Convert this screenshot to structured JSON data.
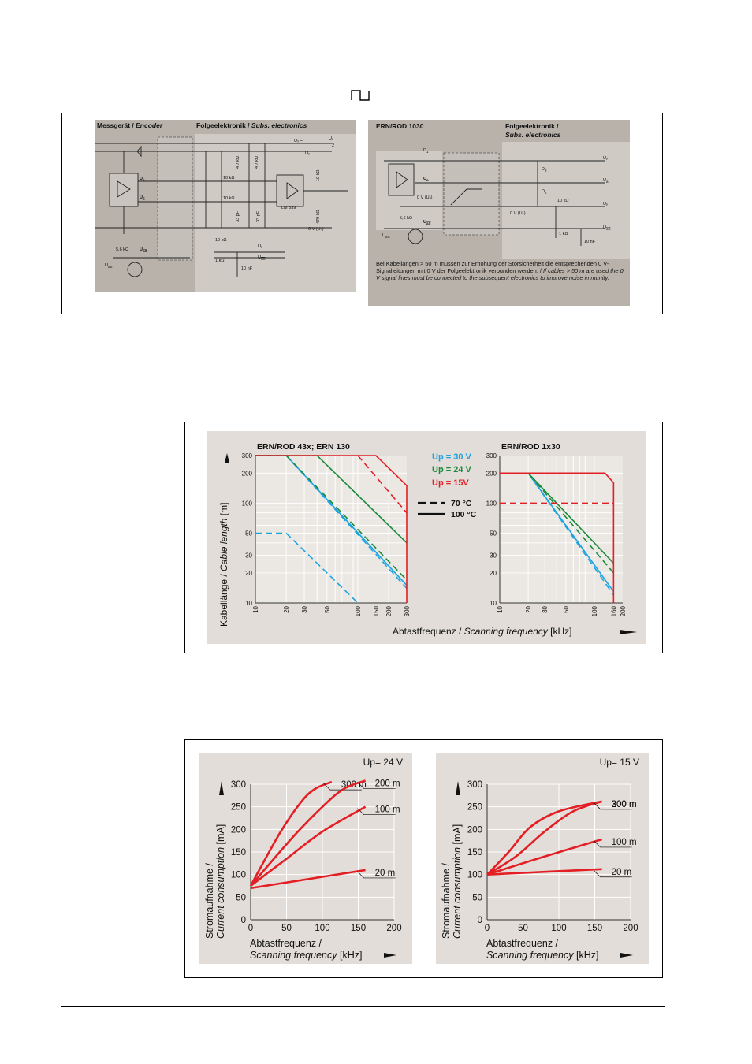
{
  "header": {
    "signal_symbol": "square-wave-icon"
  },
  "circuits": {
    "left": {
      "encoder_title_de": "Messgerät / ",
      "encoder_title_en": "Encoder",
      "subs_title_de": "Folgeelektronik / ",
      "subs_title_en": "Subs. electronics",
      "u0": "U₀ = ",
      "u0_frac_num": "Uₚ",
      "u0_frac_den": "2",
      "up": "Uₚ",
      "zero_v": "0 V (Uₙ)",
      "r_4k7_a": "4,7 kΩ",
      "r_4k7_b": "4,7 kΩ",
      "r_10k_a": "10 kΩ",
      "r_10k_b": "10 kΩ",
      "r_10k_c": "10 kΩ",
      "r_470k": "470 kΩ",
      "c_33pf_a": "33 pF",
      "c_33pf_b": "33 pF",
      "lm": "LM 339",
      "ua": "U",
      "ua_sub": "a",
      "ua_bar": "U",
      "ua_bar_sub": "a",
      "r_5k6": "5,6 kΩ",
      "uas_bar": "U",
      "uas_bar_sub": "aS",
      "uas": "U",
      "uas_sub": "aS",
      "r_10k_d": "10 kΩ",
      "r_1k": "1 kΩ",
      "c_10nf": "10 nF",
      "up2": "Uₚ",
      "uas_out": "U",
      "uas_out_sub": "aS"
    },
    "right": {
      "title": "ERN/ROD 1030",
      "subs_title_de": "Folgeelektronik /",
      "subs_title_en": "Subs. electronics",
      "d1": "D",
      "d1_sub": "1",
      "d2a": "D",
      "d2a_sub": "2",
      "d2b": "D",
      "d2b_sub": "2",
      "ua": "U",
      "ua_sub": "a",
      "up": "Uₚ",
      "ua_out": "U",
      "ua_out_sub": "a",
      "up2": "Uₚ",
      "zero_v_a": "0 V (Uₐ)",
      "zero_v_n": "0 V (Uₙ)",
      "r_10k": "10 kΩ",
      "r_1k": "1 kΩ",
      "c_10nf": "10 nF",
      "r_5k6": "5,6 kΩ",
      "uas": "U",
      "uas_sub": "aS",
      "uas_bar": "U",
      "uas_bar_sub": "aS",
      "uas_out": "U",
      "uas_out_sub": "aS",
      "note_de": "Bei Kabellängen > 50 m müssen zur Erhöhung der Störsicherheit die entsprechenden 0 V-Signalleitungen mit 0 V der Folgeelektronik verbunden werden. / ",
      "note_en": "If cables > 50 m are used the 0 V signal lines must be connected to the subsequent electronics to improve noise immunity."
    }
  },
  "cable_chart": {
    "ylabel_de": "Kabellänge / ",
    "ylabel_en": "Cable length",
    "ylabel_unit": " [m]",
    "xlabel_de": "Abtastfrequenz / ",
    "xlabel_en": "Scanning frequency",
    "xlabel_unit": " [kHz]",
    "legend": {
      "up30": "Up = 30 V",
      "up24": "Up = 24 V",
      "up15": "Up = 15V",
      "t70": "70 °C",
      "t100": "100 °C"
    },
    "colors": {
      "up30": "#1aa3e0",
      "up24": "#1a8a3a",
      "up15": "#e31e24"
    }
  },
  "current_chart": {
    "ylabel_de": "Stromaufnahme /",
    "ylabel_en": "Current consumption",
    "ylabel_unit": " [mA]",
    "xlabel_de": "Abtastfrequenz /",
    "xlabel_en": "Scanning frequency",
    "xlabel_unit": " [kHz]"
  },
  "chart_data": [
    {
      "type": "line",
      "title": "ERN/ROD 43x; ERN 130",
      "x_scale": "log",
      "y_scale": "log",
      "xlim": [
        10,
        300
      ],
      "ylim": [
        10,
        300
      ],
      "xticks": [
        10,
        20,
        30,
        50,
        100,
        150,
        200,
        300
      ],
      "yticks": [
        10,
        20,
        30,
        50,
        100,
        200,
        300
      ],
      "series": [
        {
          "name": "Up = 30 V",
          "temp": "100 °C",
          "style": "solid",
          "color": "#1aa3e0",
          "x": [
            10,
            20,
            300
          ],
          "y": [
            300,
            300,
            15
          ]
        },
        {
          "name": "Up = 30 V",
          "temp": "70 °C",
          "style": "dashed",
          "color": "#1aa3e0",
          "x": [
            10,
            20,
            300
          ],
          "y": [
            300,
            300,
            14
          ]
        },
        {
          "name": "Up = 30 V",
          "temp": "70 °C",
          "style": "dashed",
          "color": "#1aa3e0",
          "x": [
            10,
            20,
            100
          ],
          "y": [
            50,
            50,
            10
          ]
        },
        {
          "name": "Up = 24 V",
          "temp": "100 °C",
          "style": "solid",
          "color": "#1a8a3a",
          "x": [
            10,
            40,
            300
          ],
          "y": [
            300,
            300,
            40
          ]
        },
        {
          "name": "Up = 24 V",
          "temp": "70 °C",
          "style": "dashed",
          "color": "#1a8a3a",
          "x": [
            10,
            20,
            300
          ],
          "y": [
            300,
            300,
            17
          ]
        },
        {
          "name": "Up = 15V",
          "temp": "100 °C",
          "style": "solid",
          "color": "#e31e24",
          "x": [
            10,
            150,
            300,
            300
          ],
          "y": [
            300,
            300,
            150,
            10
          ]
        },
        {
          "name": "Up = 15V",
          "temp": "70 °C",
          "style": "dashed",
          "color": "#e31e24",
          "x": [
            100,
            300
          ],
          "y": [
            300,
            80
          ]
        }
      ]
    },
    {
      "type": "line",
      "title": "ERN/ROD 1x30",
      "x_scale": "log",
      "y_scale": "log",
      "xlim": [
        10,
        200
      ],
      "ylim": [
        10,
        300
      ],
      "xticks": [
        10,
        20,
        30,
        50,
        100,
        160,
        200
      ],
      "yticks": [
        10,
        20,
        30,
        50,
        100,
        200,
        300
      ],
      "series": [
        {
          "name": "Up = 30 V",
          "temp": "100 °C",
          "style": "solid",
          "color": "#1aa3e0",
          "x": [
            10,
            20,
            160
          ],
          "y": [
            200,
            200,
            13
          ]
        },
        {
          "name": "Up = 30 V",
          "temp": "70 °C",
          "style": "dashed",
          "color": "#1aa3e0",
          "x": [
            10,
            20,
            160
          ],
          "y": [
            200,
            200,
            12
          ]
        },
        {
          "name": "Up = 24 V",
          "temp": "100 °C",
          "style": "solid",
          "color": "#1a8a3a",
          "x": [
            10,
            20,
            160
          ],
          "y": [
            200,
            200,
            25
          ]
        },
        {
          "name": "Up = 24 V",
          "temp": "70 °C",
          "style": "dashed",
          "color": "#1a8a3a",
          "x": [
            10,
            20,
            160
          ],
          "y": [
            200,
            200,
            20
          ]
        },
        {
          "name": "Up = 15V",
          "temp": "100 °C",
          "style": "solid",
          "color": "#e31e24",
          "x": [
            10,
            130,
            160,
            160
          ],
          "y": [
            200,
            200,
            160,
            10
          ]
        },
        {
          "name": "Up = 15V",
          "temp": "70 °C",
          "style": "dashed",
          "color": "#e31e24",
          "x": [
            10,
            160
          ],
          "y": [
            100,
            100
          ]
        }
      ]
    },
    {
      "type": "line",
      "title": "Up= 24 V",
      "xlim": [
        0,
        200
      ],
      "ylim": [
        0,
        300
      ],
      "xticks": [
        0,
        50,
        100,
        150,
        200
      ],
      "yticks": [
        0,
        50,
        100,
        150,
        200,
        250,
        300
      ],
      "series": [
        {
          "name": "300 m",
          "x": [
            0,
            40,
            70,
            90,
            113
          ],
          "y": [
            75,
            190,
            260,
            290,
            305
          ]
        },
        {
          "name": "200 m",
          "x": [
            0,
            60,
            100,
            130,
            160
          ],
          "y": [
            75,
            185,
            250,
            290,
            308
          ]
        },
        {
          "name": "100 m",
          "x": [
            0,
            50,
            100,
            160
          ],
          "y": [
            75,
            135,
            195,
            250
          ]
        },
        {
          "name": "20 m",
          "x": [
            0,
            80,
            160
          ],
          "y": [
            70,
            90,
            110
          ]
        }
      ]
    },
    {
      "type": "line",
      "title": "Up= 15 V",
      "xlim": [
        0,
        200
      ],
      "ylim": [
        0,
        300
      ],
      "xticks": [
        0,
        50,
        100,
        150,
        200
      ],
      "yticks": [
        0,
        50,
        100,
        150,
        200,
        250,
        300
      ],
      "series": [
        {
          "name": "300 m",
          "x": [
            0,
            30,
            60,
            100,
            160
          ],
          "y": [
            100,
            150,
            205,
            240,
            262
          ]
        },
        {
          "name": "200 m",
          "x": [
            0,
            40,
            80,
            120,
            160
          ],
          "y": [
            100,
            140,
            195,
            240,
            262
          ]
        },
        {
          "name": "100 m",
          "x": [
            0,
            80,
            160
          ],
          "y": [
            100,
            140,
            178
          ]
        },
        {
          "name": "20 m",
          "x": [
            0,
            80,
            160
          ],
          "y": [
            100,
            106,
            112
          ]
        }
      ]
    }
  ]
}
